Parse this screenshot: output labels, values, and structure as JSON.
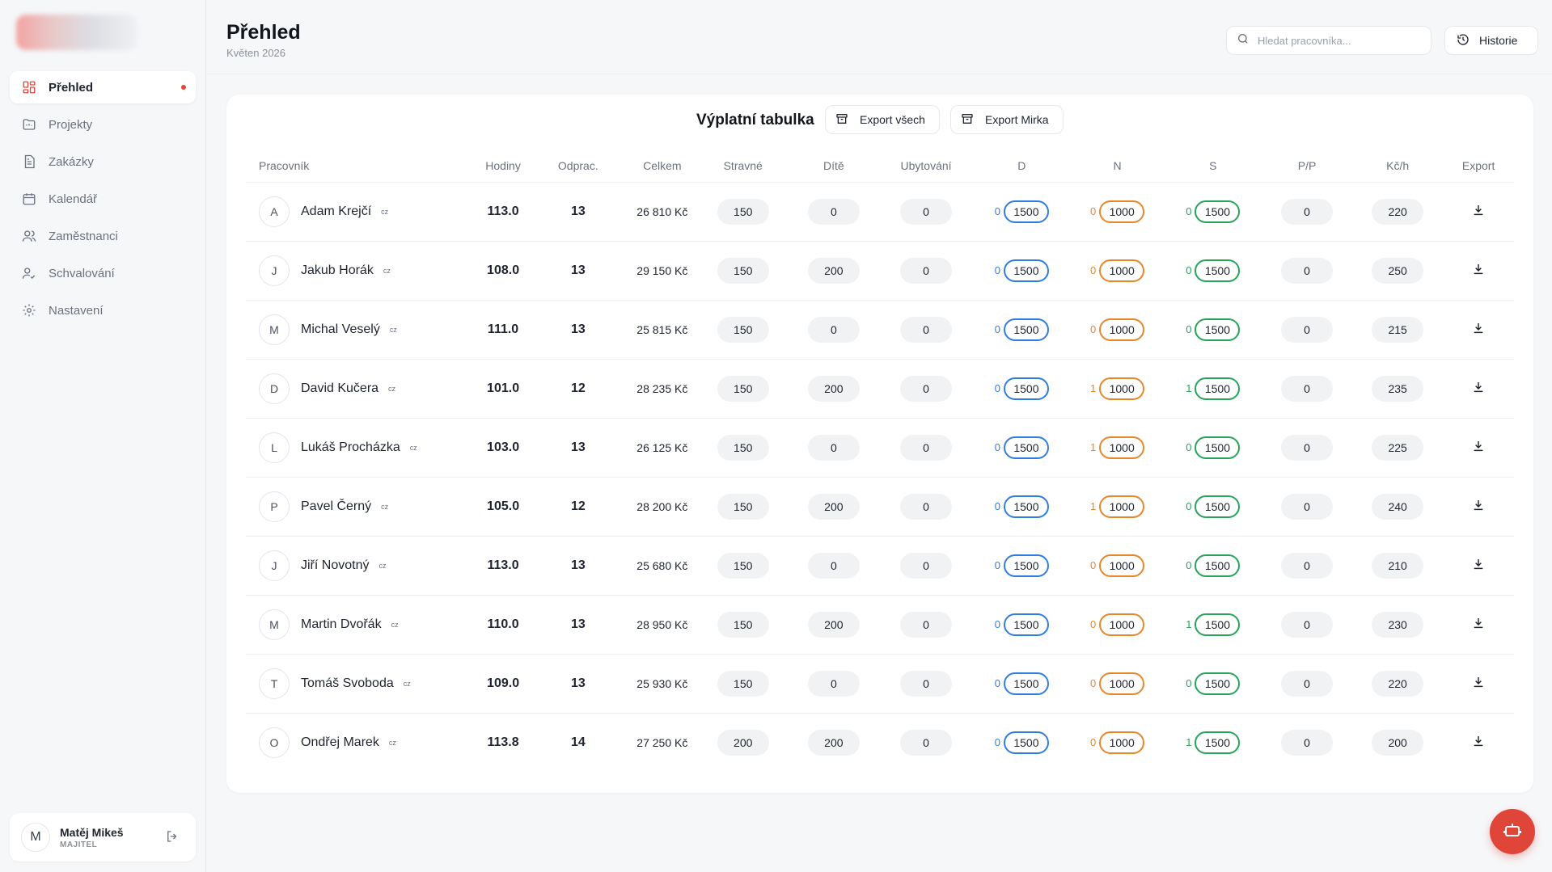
{
  "sidebar": {
    "items": [
      {
        "label": "Přehled",
        "icon": "dashboard-icon",
        "active": true
      },
      {
        "label": "Projekty",
        "icon": "folder-icon"
      },
      {
        "label": "Zakázky",
        "icon": "document-icon"
      },
      {
        "label": "Kalendář",
        "icon": "calendar-icon"
      },
      {
        "label": "Zaměstnanci",
        "icon": "users-icon"
      },
      {
        "label": "Schvalování",
        "icon": "user-check-icon"
      },
      {
        "label": "Nastavení",
        "icon": "gear-icon"
      }
    ],
    "user": {
      "initial": "M",
      "name": "Matěj Mikeš",
      "role": "MAJITEL"
    }
  },
  "header": {
    "title": "Přehled",
    "subtitle": "Květen 2026",
    "search_placeholder": "Hledat pracovníka...",
    "history_label": "Historie"
  },
  "card": {
    "title": "Výplatní tabulka",
    "export_all_label": "Export všech",
    "export_one_label": "Export Mirka"
  },
  "table": {
    "columns": [
      "Pracovník",
      "Hodiny",
      "Odprac.",
      "Celkem",
      "Stravné",
      "Dítě",
      "Ubytování",
      "D",
      "N",
      "S",
      "P/P",
      "Kč/h",
      "Export"
    ],
    "colors": {
      "d": "#2f7de1",
      "n": "#e8862a",
      "s": "#28a35a"
    },
    "rows": [
      {
        "initial": "A",
        "name": "Adam Krejčí",
        "flag": "cz",
        "hours": "113.0",
        "worked": "13",
        "total": "26 810 Kč",
        "meal": "150",
        "child": "0",
        "housing": "0",
        "d_count": "0",
        "d_val": "1500",
        "n_count": "0",
        "n_val": "1000",
        "s_count": "0",
        "s_val": "1500",
        "pp": "0",
        "rate": "220"
      },
      {
        "initial": "J",
        "name": "Jakub Horák",
        "flag": "cz",
        "hours": "108.0",
        "worked": "13",
        "total": "29 150 Kč",
        "meal": "150",
        "child": "200",
        "housing": "0",
        "d_count": "0",
        "d_val": "1500",
        "n_count": "0",
        "n_val": "1000",
        "s_count": "0",
        "s_val": "1500",
        "pp": "0",
        "rate": "250"
      },
      {
        "initial": "M",
        "name": "Michal Veselý",
        "flag": "cz",
        "hours": "111.0",
        "worked": "13",
        "total": "25 815 Kč",
        "meal": "150",
        "child": "0",
        "housing": "0",
        "d_count": "0",
        "d_val": "1500",
        "n_count": "0",
        "n_val": "1000",
        "s_count": "0",
        "s_val": "1500",
        "pp": "0",
        "rate": "215"
      },
      {
        "initial": "D",
        "name": "David Kučera",
        "flag": "cz",
        "hours": "101.0",
        "worked": "12",
        "total": "28 235 Kč",
        "meal": "150",
        "child": "200",
        "housing": "0",
        "d_count": "0",
        "d_val": "1500",
        "n_count": "1",
        "n_val": "1000",
        "s_count": "1",
        "s_val": "1500",
        "pp": "0",
        "rate": "235"
      },
      {
        "initial": "L",
        "name": "Lukáš Procházka",
        "flag": "cz",
        "hours": "103.0",
        "worked": "13",
        "total": "26 125 Kč",
        "meal": "150",
        "child": "0",
        "housing": "0",
        "d_count": "0",
        "d_val": "1500",
        "n_count": "1",
        "n_val": "1000",
        "s_count": "0",
        "s_val": "1500",
        "pp": "0",
        "rate": "225"
      },
      {
        "initial": "P",
        "name": "Pavel Černý",
        "flag": "cz",
        "hours": "105.0",
        "worked": "12",
        "total": "28 200 Kč",
        "meal": "150",
        "child": "200",
        "housing": "0",
        "d_count": "0",
        "d_val": "1500",
        "n_count": "1",
        "n_val": "1000",
        "s_count": "0",
        "s_val": "1500",
        "pp": "0",
        "rate": "240"
      },
      {
        "initial": "J",
        "name": "Jiří Novotný",
        "flag": "cz",
        "hours": "113.0",
        "worked": "13",
        "total": "25 680 Kč",
        "meal": "150",
        "child": "0",
        "housing": "0",
        "d_count": "0",
        "d_val": "1500",
        "n_count": "0",
        "n_val": "1000",
        "s_count": "0",
        "s_val": "1500",
        "pp": "0",
        "rate": "210"
      },
      {
        "initial": "M",
        "name": "Martin Dvořák",
        "flag": "cz",
        "hours": "110.0",
        "worked": "13",
        "total": "28 950 Kč",
        "meal": "150",
        "child": "200",
        "housing": "0",
        "d_count": "0",
        "d_val": "1500",
        "n_count": "0",
        "n_val": "1000",
        "s_count": "1",
        "s_val": "1500",
        "pp": "0",
        "rate": "230"
      },
      {
        "initial": "T",
        "name": "Tomáš Svoboda",
        "flag": "cz",
        "hours": "109.0",
        "worked": "13",
        "total": "25 930 Kč",
        "meal": "150",
        "child": "0",
        "housing": "0",
        "d_count": "0",
        "d_val": "1500",
        "n_count": "0",
        "n_val": "1000",
        "s_count": "0",
        "s_val": "1500",
        "pp": "0",
        "rate": "220"
      },
      {
        "initial": "O",
        "name": "Ondřej Marek",
        "flag": "cz",
        "hours": "113.8",
        "worked": "14",
        "total": "27 250 Kč",
        "meal": "200",
        "child": "200",
        "housing": "0",
        "d_count": "0",
        "d_val": "1500",
        "n_count": "0",
        "n_val": "1000",
        "s_count": "1",
        "s_val": "1500",
        "pp": "0",
        "rate": "200"
      }
    ]
  },
  "fab_icon": "robot-icon"
}
